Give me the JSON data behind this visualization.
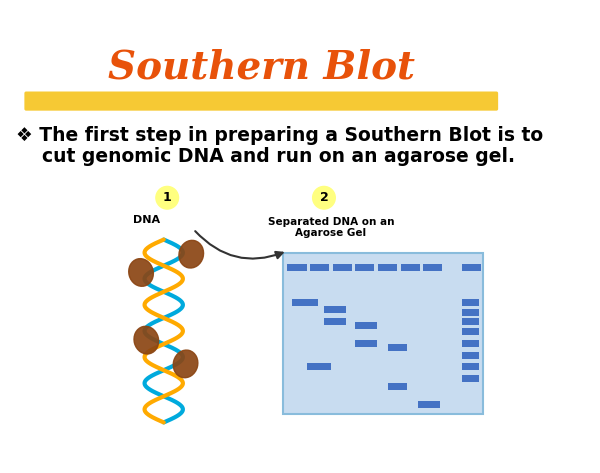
{
  "title": "Southern Blot",
  "title_color": "#E8520A",
  "title_fontsize": 28,
  "highlight_color": "#F5C010",
  "bullet_line1": "❖ The first step in preparing a Southern Blot is to",
  "bullet_line2": "    cut genomic DNA and run on an agarose gel.",
  "bullet_fontsize": 13.5,
  "label1": "1",
  "label2": "2",
  "label_bg": "#FFFF80",
  "dna_label": "DNA",
  "gel_label_line1": "Separated DNA on an",
  "gel_label_line2": "Agarose Gel",
  "gel_bg": "#C8DCF0",
  "gel_border": "#89BCDC",
  "band_color": "#4472C4",
  "background": "#FFFFFF",
  "helix_color1": "#00AADD",
  "helix_color2": "#FFAA00",
  "enzyme_color": "#8B4513",
  "arrow_color": "#333333"
}
